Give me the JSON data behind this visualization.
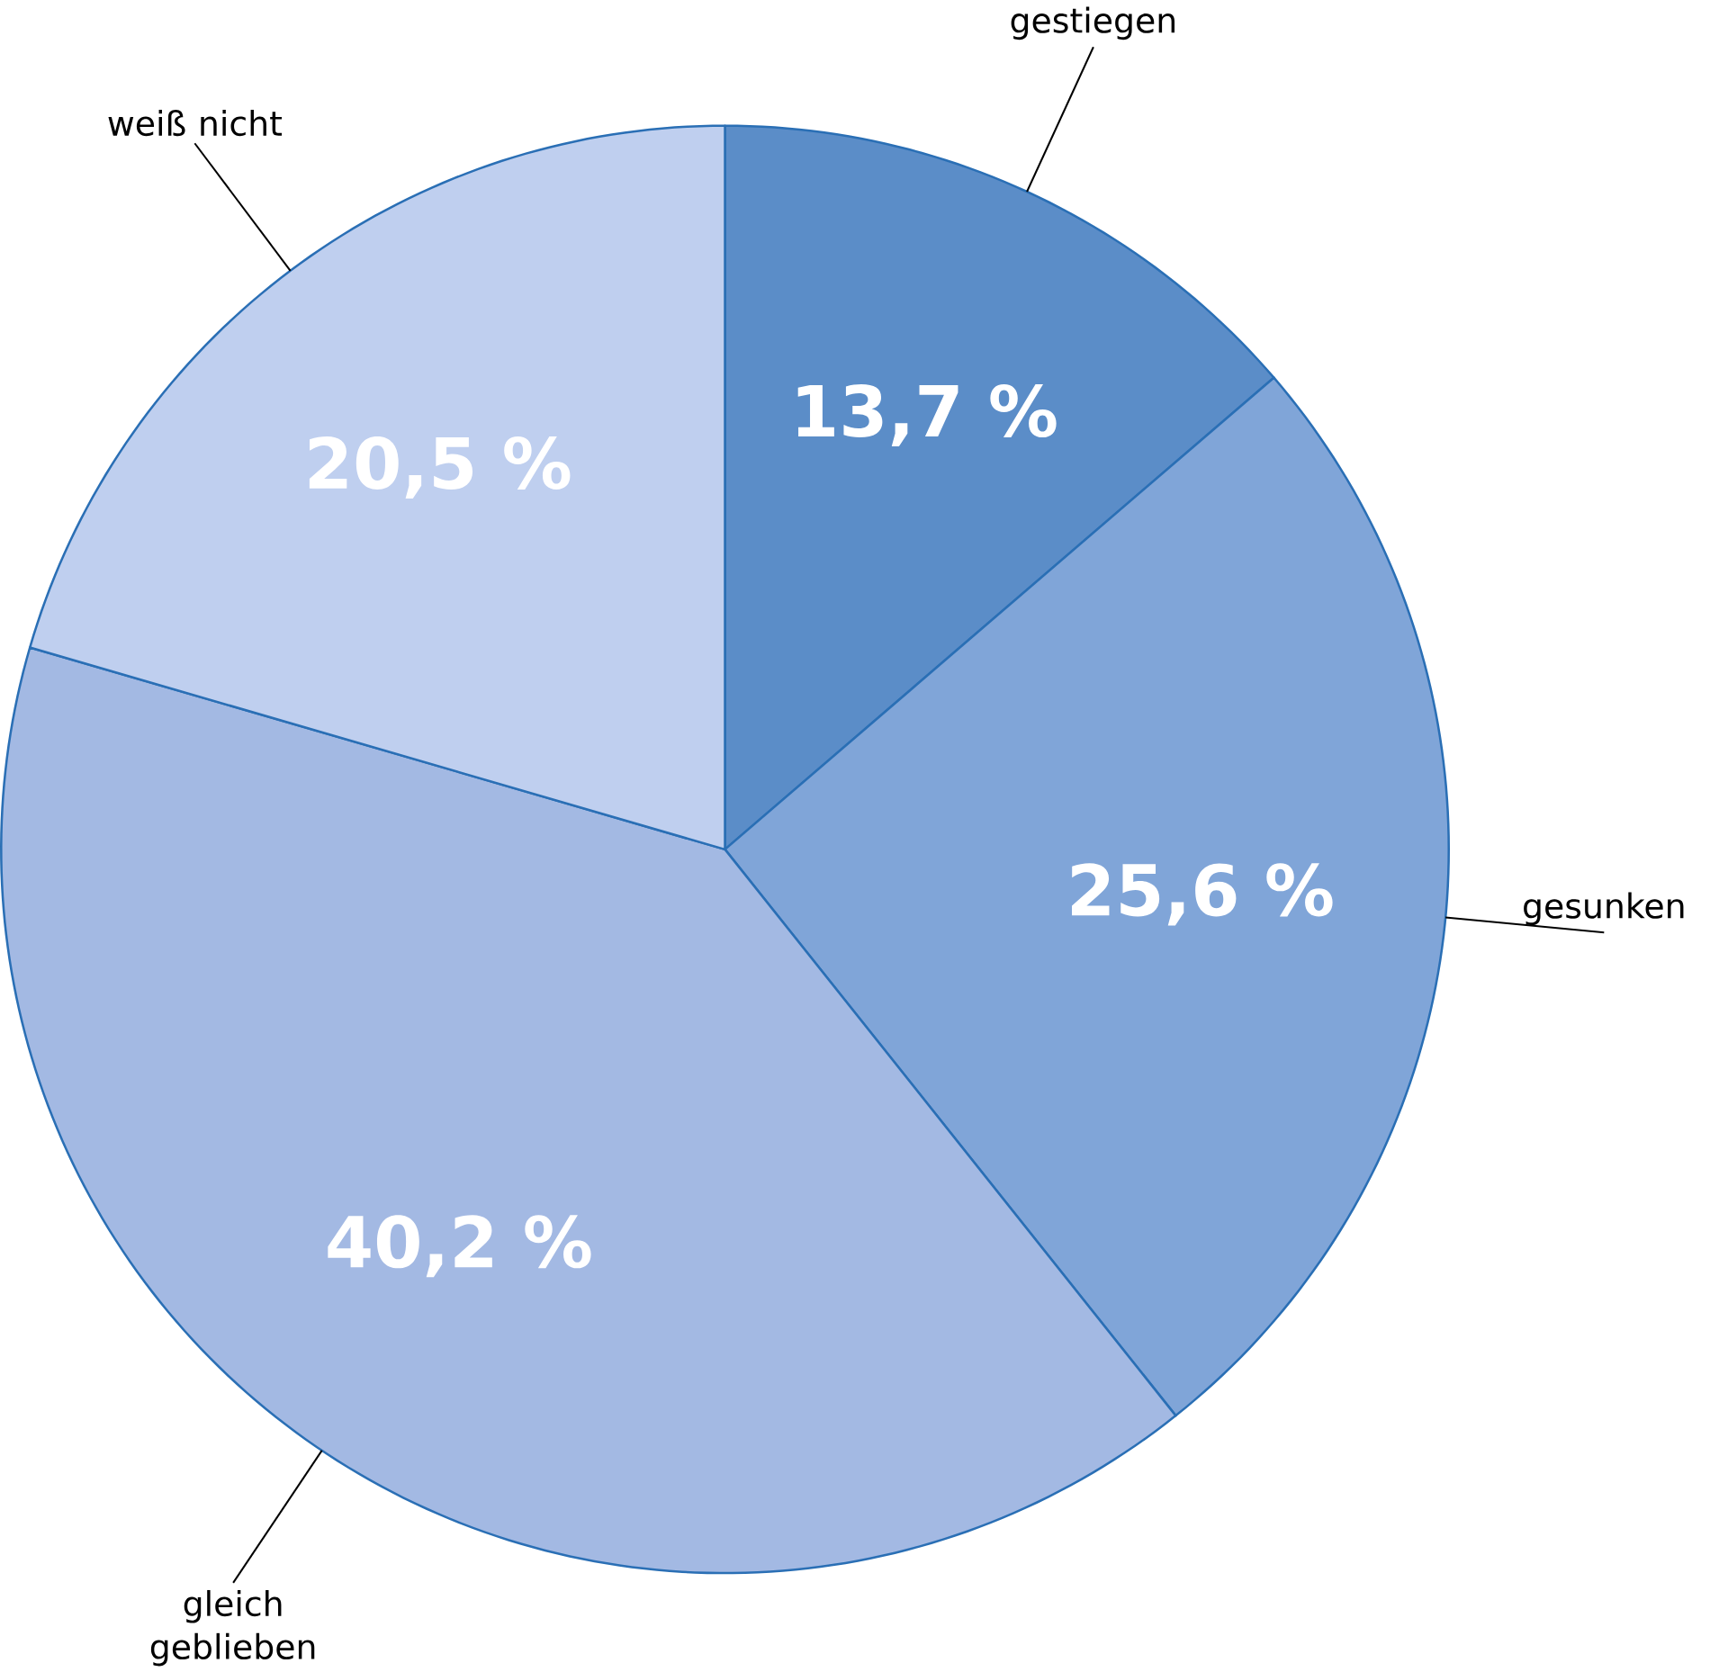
{
  "chart_data": {
    "type": "pie",
    "categories": [
      "gestiegen",
      "gesunken",
      "gleich geblieben",
      "weiß nicht"
    ],
    "values": [
      13.7,
      25.6,
      40.2,
      20.5
    ],
    "colors": [
      "#5b8dc8",
      "#80a5d8",
      "#a3b9e3",
      "#bfcfef"
    ],
    "value_labels": [
      "13,7 %",
      "25,6 %",
      "40,2 %",
      "20,5 %"
    ]
  }
}
